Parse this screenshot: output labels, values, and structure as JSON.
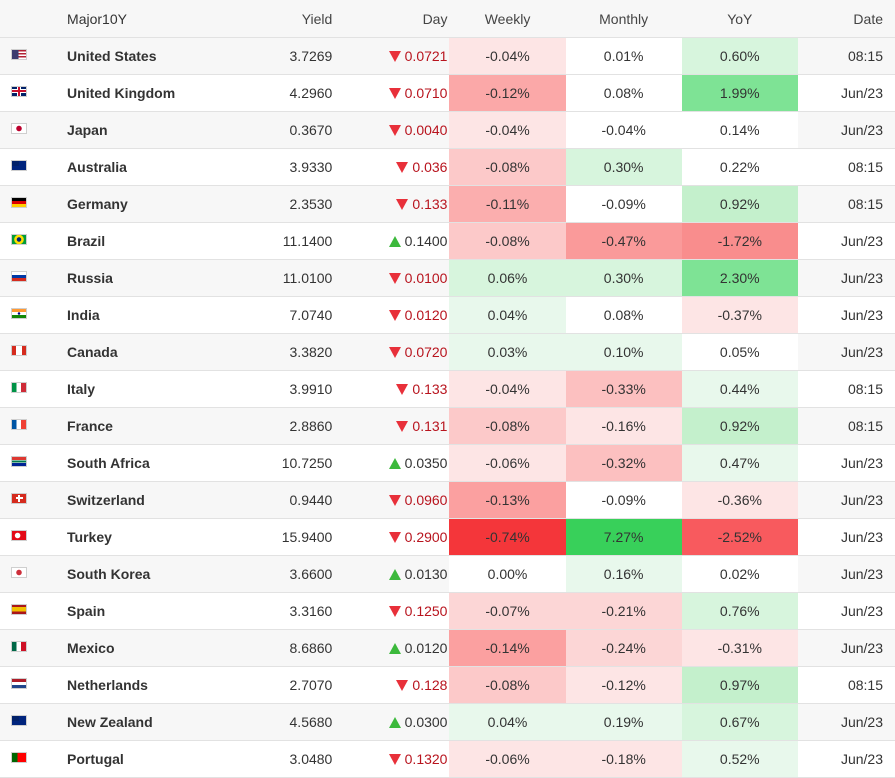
{
  "header": {
    "name": "Major10Y",
    "yield": "Yield",
    "day": "Day",
    "weekly": "Weekly",
    "monthly": "Monthly",
    "yoy": "YoY",
    "date": "Date"
  },
  "colors": {
    "down_arrow": "#e8303a",
    "up_arrow": "#3cb93c",
    "down_text": "#b8141e"
  },
  "rows": [
    {
      "name": "United States",
      "flag": "us",
      "yield": "3.7269",
      "day": "0.0721",
      "dir": "down",
      "weekly": "-0.04%",
      "wk_bg": "#fde5e5",
      "monthly": "0.01%",
      "mo_bg": "#ffffff",
      "yoy": "0.60%",
      "yoy_bg": "#d7f5dd",
      "date": "08:15"
    },
    {
      "name": "United Kingdom",
      "flag": "gb",
      "yield": "4.2960",
      "day": "0.0710",
      "dir": "down",
      "weekly": "-0.12%",
      "wk_bg": "#fba8a8",
      "monthly": "0.08%",
      "mo_bg": "#ffffff",
      "yoy": "1.99%",
      "yoy_bg": "#7ee395",
      "date": "Jun/23"
    },
    {
      "name": "Japan",
      "flag": "jp",
      "yield": "0.3670",
      "day": "0.0040",
      "dir": "down",
      "weekly": "-0.04%",
      "wk_bg": "#fde5e5",
      "monthly": "-0.04%",
      "mo_bg": "#ffffff",
      "yoy": "0.14%",
      "yoy_bg": "#ffffff",
      "date": "Jun/23"
    },
    {
      "name": "Australia",
      "flag": "au",
      "yield": "3.9330",
      "day": "0.036",
      "dir": "down",
      "weekly": "-0.08%",
      "wk_bg": "#fcc9c9",
      "monthly": "0.30%",
      "mo_bg": "#d7f5dd",
      "yoy": "0.22%",
      "yoy_bg": "#ffffff",
      "date": "08:15"
    },
    {
      "name": "Germany",
      "flag": "de",
      "yield": "2.3530",
      "day": "0.133",
      "dir": "down",
      "weekly": "-0.11%",
      "wk_bg": "#fbaeae",
      "monthly": "-0.09%",
      "mo_bg": "#ffffff",
      "yoy": "0.92%",
      "yoy_bg": "#c4f0cc",
      "date": "08:15"
    },
    {
      "name": "Brazil",
      "flag": "br",
      "yield": "11.1400",
      "day": "0.1400",
      "dir": "up",
      "weekly": "-0.08%",
      "wk_bg": "#fcc9c9",
      "monthly": "-0.47%",
      "mo_bg": "#fa9a9a",
      "yoy": "-1.72%",
      "yoy_bg": "#f98d8d",
      "date": "Jun/23"
    },
    {
      "name": "Russia",
      "flag": "ru",
      "yield": "11.0100",
      "day": "0.0100",
      "dir": "down",
      "weekly": "0.06%",
      "wk_bg": "#d7f5dd",
      "monthly": "0.30%",
      "mo_bg": "#d7f5dd",
      "yoy": "2.30%",
      "yoy_bg": "#7ee395",
      "date": "Jun/23"
    },
    {
      "name": "India",
      "flag": "in",
      "yield": "7.0740",
      "day": "0.0120",
      "dir": "down",
      "weekly": "0.04%",
      "wk_bg": "#e8f8ec",
      "monthly": "0.08%",
      "mo_bg": "#ffffff",
      "yoy": "-0.37%",
      "yoy_bg": "#fde5e5",
      "date": "Jun/23"
    },
    {
      "name": "Canada",
      "flag": "ca",
      "yield": "3.3820",
      "day": "0.0720",
      "dir": "down",
      "weekly": "0.03%",
      "wk_bg": "#e8f8ec",
      "monthly": "0.10%",
      "mo_bg": "#e8f8ec",
      "yoy": "0.05%",
      "yoy_bg": "#ffffff",
      "date": "Jun/23"
    },
    {
      "name": "Italy",
      "flag": "it",
      "yield": "3.9910",
      "day": "0.133",
      "dir": "down",
      "weekly": "-0.04%",
      "wk_bg": "#fde5e5",
      "monthly": "-0.33%",
      "mo_bg": "#fcc0c0",
      "yoy": "0.44%",
      "yoy_bg": "#e8f8ec",
      "date": "08:15"
    },
    {
      "name": "France",
      "flag": "fr",
      "yield": "2.8860",
      "day": "0.131",
      "dir": "down",
      "weekly": "-0.08%",
      "wk_bg": "#fcc9c9",
      "monthly": "-0.16%",
      "mo_bg": "#fde5e5",
      "yoy": "0.92%",
      "yoy_bg": "#c4f0cc",
      "date": "08:15"
    },
    {
      "name": "South Africa",
      "flag": "za",
      "yield": "10.7250",
      "day": "0.0350",
      "dir": "up",
      "weekly": "-0.06%",
      "wk_bg": "#fde5e5",
      "monthly": "-0.32%",
      "mo_bg": "#fcc0c0",
      "yoy": "0.47%",
      "yoy_bg": "#e8f8ec",
      "date": "Jun/23"
    },
    {
      "name": "Switzerland",
      "flag": "ch",
      "yield": "0.9440",
      "day": "0.0960",
      "dir": "down",
      "weekly": "-0.13%",
      "wk_bg": "#fba0a0",
      "monthly": "-0.09%",
      "mo_bg": "#ffffff",
      "yoy": "-0.36%",
      "yoy_bg": "#fde5e5",
      "date": "Jun/23"
    },
    {
      "name": "Turkey",
      "flag": "tr",
      "yield": "15.9400",
      "day": "0.2900",
      "dir": "down",
      "weekly": "-0.74%",
      "wk_bg": "#f4363a",
      "monthly": "7.27%",
      "mo_bg": "#38d05a",
      "yoy": "-2.52%",
      "yoy_bg": "#f85a5e",
      "date": "Jun/23"
    },
    {
      "name": "South Korea",
      "flag": "kr",
      "yield": "3.6600",
      "day": "0.0130",
      "dir": "up",
      "weekly": "0.00%",
      "wk_bg": "#ffffff",
      "monthly": "0.16%",
      "mo_bg": "#e8f8ec",
      "yoy": "0.02%",
      "yoy_bg": "#ffffff",
      "date": "Jun/23"
    },
    {
      "name": "Spain",
      "flag": "es",
      "yield": "3.3160",
      "day": "0.1250",
      "dir": "down",
      "weekly": "-0.07%",
      "wk_bg": "#fcd6d6",
      "monthly": "-0.21%",
      "mo_bg": "#fcd6d6",
      "yoy": "0.76%",
      "yoy_bg": "#d7f5dd",
      "date": "Jun/23"
    },
    {
      "name": "Mexico",
      "flag": "mx",
      "yield": "8.6860",
      "day": "0.0120",
      "dir": "up",
      "weekly": "-0.14%",
      "wk_bg": "#fba0a0",
      "monthly": "-0.24%",
      "mo_bg": "#fcd6d6",
      "yoy": "-0.31%",
      "yoy_bg": "#fde5e5",
      "date": "Jun/23"
    },
    {
      "name": "Netherlands",
      "flag": "nl",
      "yield": "2.7070",
      "day": "0.128",
      "dir": "down",
      "weekly": "-0.08%",
      "wk_bg": "#fcc9c9",
      "monthly": "-0.12%",
      "mo_bg": "#fde5e5",
      "yoy": "0.97%",
      "yoy_bg": "#c4f0cc",
      "date": "08:15"
    },
    {
      "name": "New Zealand",
      "flag": "nz",
      "yield": "4.5680",
      "day": "0.0300",
      "dir": "up",
      "weekly": "0.04%",
      "wk_bg": "#e8f8ec",
      "monthly": "0.19%",
      "mo_bg": "#e8f8ec",
      "yoy": "0.67%",
      "yoy_bg": "#d7f5dd",
      "date": "Jun/23"
    },
    {
      "name": "Portugal",
      "flag": "pt",
      "yield": "3.0480",
      "day": "0.1320",
      "dir": "down",
      "weekly": "-0.06%",
      "wk_bg": "#fde5e5",
      "monthly": "-0.18%",
      "mo_bg": "#fde5e5",
      "yoy": "0.52%",
      "yoy_bg": "#e8f8ec",
      "date": "Jun/23"
    }
  ]
}
